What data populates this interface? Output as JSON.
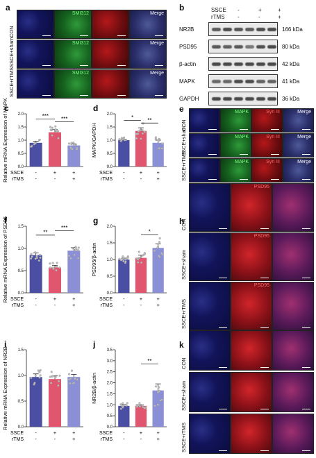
{
  "panels": {
    "a": {
      "letter": "a",
      "rows": [
        "CON",
        "SSCE+sham",
        "SSCE+rTMS"
      ],
      "cols": [
        "",
        "SMI312",
        "",
        "Merge"
      ]
    },
    "b": {
      "letter": "b",
      "header": {
        "ssce_label": "SSCE",
        "rtms_label": "rTMS",
        "ssce_signs": [
          "-",
          "+",
          "+"
        ],
        "rtms_signs": [
          "-",
          "-",
          "+"
        ]
      },
      "blots": [
        {
          "name": "NR2B",
          "kda": "166 kDa"
        },
        {
          "name": "PSD95",
          "kda": "80 kDa"
        },
        {
          "name": "β-actin",
          "kda": "42 kDa"
        },
        {
          "name": "MAPK",
          "kda": "41 kDa"
        },
        {
          "name": "GAPDH",
          "kda": "36 kDa"
        }
      ]
    },
    "e": {
      "letter": "e",
      "rows": [
        "CON",
        "SSCE+sham",
        "SSCE+rTMS"
      ],
      "cols": [
        "",
        "MAPK",
        "Syn III",
        "Merge"
      ]
    },
    "h": {
      "letter": "h",
      "rows": [
        "CON",
        "SSCE+sham",
        "SSCE+rTMS"
      ],
      "cols": [
        "",
        "PSD95",
        ""
      ]
    },
    "k": {
      "letter": "k",
      "rows": [
        "CON",
        "SSCE+sham",
        "SSCE+rTMS"
      ],
      "cols": [
        "",
        "",
        ""
      ]
    }
  },
  "group_labels": {
    "ssce": "SSCE",
    "rtms": "rTMS",
    "ssce_signs": [
      "-",
      "+",
      "+"
    ],
    "rtms_signs": [
      "-",
      "-",
      "+"
    ]
  },
  "colors": {
    "con": "#4a4fa3",
    "sham": "#e0566e",
    "rtms": "#8b8fd6",
    "dots": "#bdbdbd"
  },
  "chart_data": [
    {
      "id": "c",
      "letter": "c",
      "type": "bar",
      "ylabel": "Relative mRNA Expression of MAPK",
      "categories": [
        "CON",
        "SSCE+sham",
        "SSCE+rTMS"
      ],
      "values": [
        0.9,
        1.3,
        0.8
      ],
      "errors": [
        0.06,
        0.1,
        0.06
      ],
      "ylim": [
        0,
        2.0
      ],
      "yticks": [
        "0.0",
        "0.5",
        "1.0",
        "1.5",
        "2.0"
      ],
      "sig": [
        {
          "text": "***",
          "from": 0,
          "to": 1,
          "level": 1.8
        },
        {
          "text": "***",
          "from": 1,
          "to": 2,
          "level": 1.7
        }
      ]
    },
    {
      "id": "d",
      "letter": "d",
      "type": "bar",
      "ylabel": "MAPK/GAPDH",
      "categories": [
        "CON",
        "SSCE+sham",
        "SSCE+rTMS"
      ],
      "values": [
        1.0,
        1.35,
        0.9
      ],
      "errors": [
        0.04,
        0.12,
        0.1
      ],
      "ylim": [
        0,
        2.0
      ],
      "yticks": [
        "0.0",
        "0.5",
        "1.0",
        "1.5",
        "2.0"
      ],
      "sig": [
        {
          "text": "*",
          "from": 0,
          "to": 1,
          "level": 1.75
        },
        {
          "text": "**",
          "from": 1,
          "to": 2,
          "level": 1.65
        }
      ]
    },
    {
      "id": "f",
      "letter": "f",
      "type": "bar",
      "ylabel": "Relative mRNA Expression of PSD95",
      "categories": [
        "CON",
        "SSCE+sham",
        "SSCE+rTMS"
      ],
      "values": [
        0.85,
        0.57,
        0.95
      ],
      "errors": [
        0.05,
        0.05,
        0.07
      ],
      "ylim": [
        0,
        1.5
      ],
      "yticks": [
        "0.0",
        "0.5",
        "1.0",
        "1.5"
      ],
      "sig": [
        {
          "text": "**",
          "from": 0,
          "to": 1,
          "level": 1.3
        },
        {
          "text": "***",
          "from": 1,
          "to": 2,
          "level": 1.4
        }
      ]
    },
    {
      "id": "g",
      "letter": "g",
      "type": "bar",
      "ylabel": "PSD95/β-actin",
      "categories": [
        "CON",
        "SSCE+sham",
        "SSCE+rTMS"
      ],
      "values": [
        1.0,
        1.05,
        1.35
      ],
      "errors": [
        0.04,
        0.08,
        0.12
      ],
      "ylim": [
        0,
        2.0
      ],
      "yticks": [
        "0.0",
        "0.5",
        "1.0",
        "1.5",
        "2.0"
      ],
      "sig": [
        {
          "text": "*",
          "from": 1,
          "to": 2,
          "level": 1.75
        }
      ]
    },
    {
      "id": "i",
      "letter": "i",
      "type": "bar",
      "ylabel": "Relative mRNA Expression of NR2B",
      "categories": [
        "CON",
        "SSCE+sham",
        "SSCE+rTMS"
      ],
      "values": [
        0.97,
        0.93,
        0.97
      ],
      "errors": [
        0.06,
        0.06,
        0.05
      ],
      "ylim": [
        0,
        1.5
      ],
      "yticks": [
        "0.0",
        "0.5",
        "1.0",
        "1.5"
      ],
      "sig": []
    },
    {
      "id": "j",
      "letter": "j",
      "type": "bar",
      "ylabel": "NR2B/β-actin",
      "categories": [
        "CON",
        "SSCE+sham",
        "SSCE+rTMS"
      ],
      "values": [
        0.95,
        0.95,
        1.65
      ],
      "errors": [
        0.06,
        0.05,
        0.3
      ],
      "ylim": [
        0,
        3.5
      ],
      "yticks": [
        "0.0",
        "0.5",
        "1.0",
        "1.5",
        "2.0",
        "2.5",
        "3.0",
        "3.5"
      ],
      "sig": [
        {
          "text": "**",
          "from": 1,
          "to": 2,
          "level": 2.85
        }
      ]
    }
  ]
}
